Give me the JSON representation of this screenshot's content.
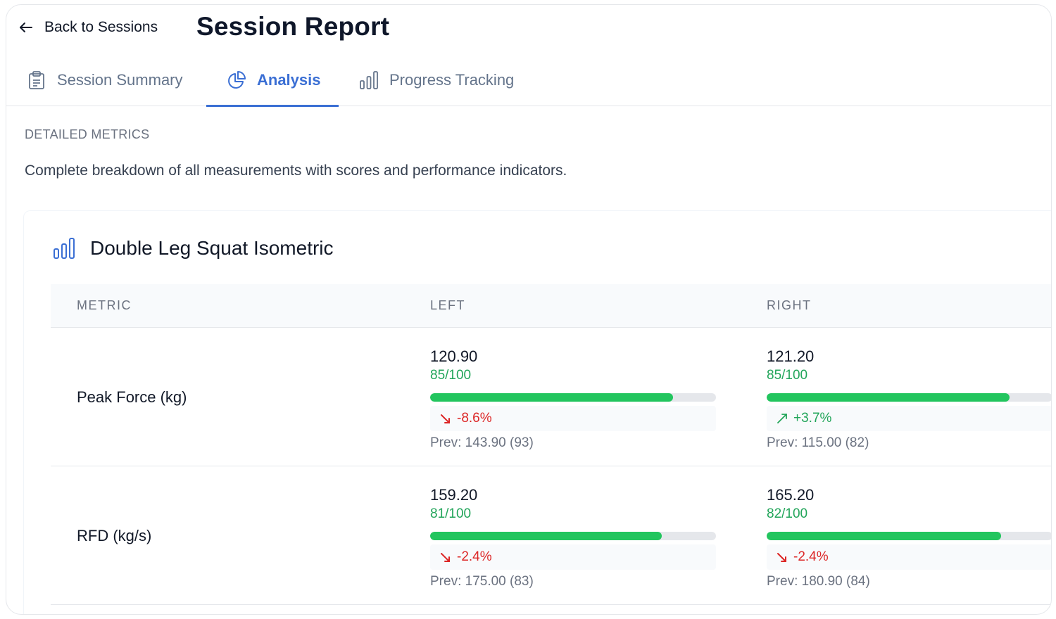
{
  "header": {
    "back_label": "Back to Sessions",
    "title": "Session Report"
  },
  "tabs": [
    {
      "label": "Session Summary",
      "icon": "clipboard-icon",
      "active": false
    },
    {
      "label": "Analysis",
      "icon": "pie-chart-icon",
      "active": true
    },
    {
      "label": "Progress Tracking",
      "icon": "bar-chart-icon",
      "active": false
    }
  ],
  "section": {
    "label": "DETAILED METRICS",
    "description": "Complete breakdown of all measurements with scores and performance indicators."
  },
  "card": {
    "title": "Double Leg Squat Isometric",
    "icon": "bar-chart-icon",
    "columns": [
      "METRIC",
      "LEFT",
      "RIGHT"
    ],
    "rows": [
      {
        "metric": "Peak Force (kg)",
        "left": {
          "value": "120.90",
          "score": "85/100",
          "score_pct": 85,
          "change": "-8.6%",
          "direction": "down",
          "prev": "Prev: 143.90 (93)"
        },
        "right": {
          "value": "121.20",
          "score": "85/100",
          "score_pct": 85,
          "change": "+3.7%",
          "direction": "up",
          "prev": "Prev: 115.00 (82)"
        }
      },
      {
        "metric": "RFD (kg/s)",
        "left": {
          "value": "159.20",
          "score": "81/100",
          "score_pct": 81,
          "change": "-2.4%",
          "direction": "down",
          "prev": "Prev: 175.00 (83)"
        },
        "right": {
          "value": "165.20",
          "score": "82/100",
          "score_pct": 82,
          "change": "-2.4%",
          "direction": "down",
          "prev": "Prev: 180.90 (84)"
        }
      }
    ]
  },
  "colors": {
    "accent": "#3b6fd4",
    "positive": "#22c55e",
    "negative": "#dc2626"
  }
}
